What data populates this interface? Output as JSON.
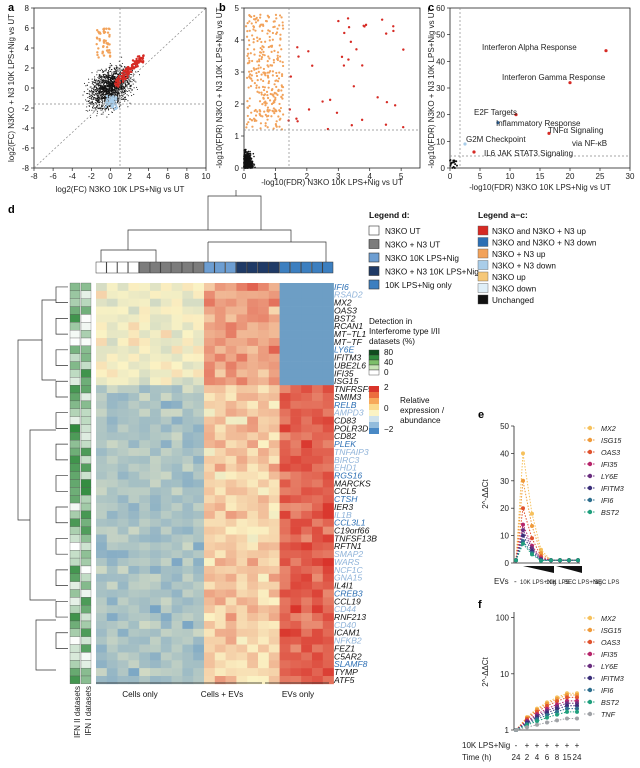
{
  "panels": {
    "a": {
      "label": "a",
      "ylabel": "log2(FC) N3KO + N3 10K LPS+Nig vs UT",
      "xlabel": "log2(FC) N3KO 10K LPS+Nig vs UT",
      "xticks": [
        "-8",
        "-6",
        "-4",
        "-2",
        "0",
        "2",
        "4",
        "6",
        "8",
        "10"
      ],
      "yticks": [
        "-8",
        "-6",
        "-4",
        "-2",
        "0",
        "2",
        "4",
        "6",
        "8"
      ]
    },
    "b": {
      "label": "b",
      "ylabel": "-log10(FDR) N3KO + N3 10K LPS+Nig vs UT",
      "xlabel": "-log10(FDR) N3KO 10K LPS+Nig vs UT",
      "xticks": [
        "0",
        "1",
        "2",
        "3",
        "4",
        "5"
      ],
      "yticks": [
        "0",
        "1",
        "2",
        "3",
        "4",
        "5"
      ]
    },
    "c": {
      "label": "c",
      "ylabel": "-log10(FDR) N3KO + N3 10K LPS+Nig vs UT",
      "xlabel": "-log10(FDR) N3KO 10K LPS+Nig vs UT",
      "xticks": [
        "0",
        "5",
        "10",
        "15",
        "20",
        "25",
        "30"
      ],
      "yticks": [
        "0",
        "10",
        "20",
        "30",
        "40",
        "50",
        "60"
      ],
      "annotations": [
        "Interferon Alpha Response",
        "Interferon Gamma Response",
        "E2F Targets",
        "Inflammatory Response",
        "G2M Checkpoint",
        "TNFα Signaling",
        "via NF-κB",
        "IL6 JAK STAT3 Signaling"
      ]
    },
    "d": {
      "label": "d",
      "column_groups": [
        "Cells only",
        "Cells + EVs",
        "EVs only"
      ],
      "side_labels": [
        "IFN II datasets",
        "IFN I datasets"
      ],
      "genes": [
        {
          "name": "IFI6",
          "c": "#2c6fb4"
        },
        {
          "name": "RSAD2",
          "c": "#8fb3d9"
        },
        {
          "name": "MX2",
          "c": "#111"
        },
        {
          "name": "OAS3",
          "c": "#111"
        },
        {
          "name": "BST2",
          "c": "#111"
        },
        {
          "name": "RCAN1",
          "c": "#111"
        },
        {
          "name": "MT−TL1",
          "c": "#111"
        },
        {
          "name": "MT−TF",
          "c": "#111"
        },
        {
          "name": "LY6E",
          "c": "#2c6fb4"
        },
        {
          "name": "IFITM3",
          "c": "#111"
        },
        {
          "name": "UBE2L6",
          "c": "#111"
        },
        {
          "name": "IFI35",
          "c": "#111"
        },
        {
          "name": "ISG15",
          "c": "#111"
        },
        {
          "name": "TNFRSF9",
          "c": "#111"
        },
        {
          "name": "SMIM3",
          "c": "#111"
        },
        {
          "name": "RELB",
          "c": "#2c6fb4"
        },
        {
          "name": "AMPD3",
          "c": "#8fb3d9"
        },
        {
          "name": "CD83",
          "c": "#111"
        },
        {
          "name": "POLR3D",
          "c": "#111"
        },
        {
          "name": "CD82",
          "c": "#111"
        },
        {
          "name": "PLEK",
          "c": "#2c6fb4"
        },
        {
          "name": "TNFAIP3",
          "c": "#8fb3d9"
        },
        {
          "name": "BIRC3",
          "c": "#8fb3d9"
        },
        {
          "name": "EHD1",
          "c": "#8fb3d9"
        },
        {
          "name": "RGS16",
          "c": "#2c6fb4"
        },
        {
          "name": "MARCKS",
          "c": "#111"
        },
        {
          "name": "CCL5",
          "c": "#111"
        },
        {
          "name": "CTSH",
          "c": "#2c6fb4"
        },
        {
          "name": "IER3",
          "c": "#111"
        },
        {
          "name": "IL1B",
          "c": "#8fb3d9"
        },
        {
          "name": "CCL3L1",
          "c": "#2c6fb4"
        },
        {
          "name": "C19orf66",
          "c": "#111"
        },
        {
          "name": "TNFSF13B",
          "c": "#111"
        },
        {
          "name": "RFTN1",
          "c": "#111"
        },
        {
          "name": "SMAP2",
          "c": "#8fb3d9"
        },
        {
          "name": "WARS",
          "c": "#8fb3d9"
        },
        {
          "name": "NCF1C",
          "c": "#8fb3d9"
        },
        {
          "name": "GNA15",
          "c": "#8fb3d9"
        },
        {
          "name": "IL4I1",
          "c": "#111"
        },
        {
          "name": "CREB3",
          "c": "#2c6fb4"
        },
        {
          "name": "CCL19",
          "c": "#111"
        },
        {
          "name": "CD44",
          "c": "#8fb3d9"
        },
        {
          "name": "RNF213",
          "c": "#111"
        },
        {
          "name": "CD40",
          "c": "#8fb3d9"
        },
        {
          "name": "ICAM1",
          "c": "#111"
        },
        {
          "name": "NFKB2",
          "c": "#8fb3d9"
        },
        {
          "name": "FEZ1",
          "c": "#111"
        },
        {
          "name": "C5AR2",
          "c": "#111"
        },
        {
          "name": "SLAMF8",
          "c": "#2c6fb4"
        },
        {
          "name": "TYMP",
          "c": "#111"
        },
        {
          "name": "ATF5",
          "c": "#111"
        }
      ]
    },
    "e": {
      "label": "e",
      "ylabel": "2^-ΔΔCt",
      "yticks": [
        "0",
        "10",
        "20",
        "30",
        "40",
        "50"
      ],
      "xlabels": [
        "EVs",
        "-",
        "10K LPS+Nig",
        "10K LPS",
        "SEC LPS+Nig",
        "SEC LPS"
      ],
      "genes": [
        {
          "name": "MX2",
          "c": "#f6c15c"
        },
        {
          "name": "ISG15",
          "c": "#ef9a3a"
        },
        {
          "name": "OAS3",
          "c": "#e0522e"
        },
        {
          "name": "IFI35",
          "c": "#b6256b"
        },
        {
          "name": "LY6E",
          "c": "#6a2e7f"
        },
        {
          "name": "IFITM3",
          "c": "#3a2f7a"
        },
        {
          "name": "IFI6",
          "c": "#2d6e8e"
        },
        {
          "name": "BST2",
          "c": "#1f9f7d"
        }
      ]
    },
    "f": {
      "label": "f",
      "ylabel": "2^-ΔΔCt",
      "yticks": [
        "1",
        "10",
        "100"
      ],
      "row1_label": "10K LPS+Nig",
      "row1": [
        "-",
        "+",
        "+",
        "+",
        "+",
        "+",
        "+"
      ],
      "row2_label": "Time (h)",
      "row2": [
        "24",
        "2",
        "4",
        "6",
        "8",
        "15",
        "24"
      ],
      "genes": [
        {
          "name": "MX2",
          "c": "#f6c15c"
        },
        {
          "name": "ISG15",
          "c": "#ef9a3a"
        },
        {
          "name": "OAS3",
          "c": "#e0522e"
        },
        {
          "name": "IFI35",
          "c": "#b6256b"
        },
        {
          "name": "LY6E",
          "c": "#6a2e7f"
        },
        {
          "name": "IFITM3",
          "c": "#3a2f7a"
        },
        {
          "name": "IFI6",
          "c": "#2d6e8e"
        },
        {
          "name": "BST2",
          "c": "#1f9f7d"
        },
        {
          "name": "TNF",
          "c": "#9fa2a6"
        }
      ]
    }
  },
  "legend_d": {
    "title": "Legend d:",
    "items": [
      {
        "label": "N3KO UT",
        "c": "#ffffff"
      },
      {
        "label": "N3KO + N3 UT",
        "c": "#7c7c7c"
      },
      {
        "label": "N3KO 10K LPS+Nig",
        "c": "#6d9ed2"
      },
      {
        "label": "N3KO + N3 10K LPS+Nig",
        "c": "#1f3a66"
      },
      {
        "label": "10K LPS+Nig only",
        "c": "#3c7fc0"
      }
    ],
    "detection_title": "Detection in Interferome type I/II datasets (%)",
    "detection_ticks": [
      "80",
      "40",
      "0"
    ],
    "expression_title": "Relative expression / abundance",
    "expression_ticks": [
      "2",
      "0",
      "−2"
    ]
  },
  "legend_ac": {
    "title": "Legend a−c:",
    "items": [
      {
        "label": "N3KO and N3KO + N3 up",
        "c": "#d62a24"
      },
      {
        "label": "N3KO and N3KO + N3 down",
        "c": "#2c6fb4"
      },
      {
        "label": "N3KO + N3 up",
        "c": "#f2a25a"
      },
      {
        "label": "N3KO + N3 down",
        "c": "#a9cde9"
      },
      {
        "label": "N3KO up",
        "c": "#f6c878"
      },
      {
        "label": "N3KO down",
        "c": "#dfeff8"
      },
      {
        "label": "Unchanged",
        "c": "#111111"
      }
    ]
  },
  "colors": {
    "heat_low": "#4a89c5",
    "heat_mid": "#fbf3c4",
    "heat_high": "#d9342b",
    "ifn": "#2f8a3c"
  }
}
